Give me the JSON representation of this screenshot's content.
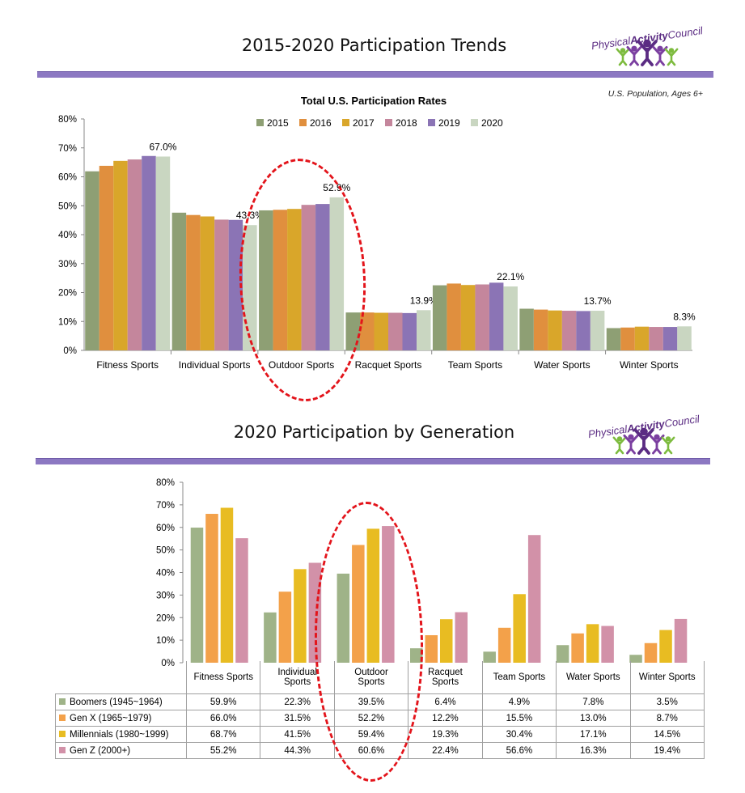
{
  "section1": {
    "title": "2015-2020 Participation Trends",
    "note": "U.S. Population, Ages 6+"
  },
  "section2": {
    "title": "2020 Participation by Generation"
  },
  "logo": {
    "text_a": "Physical",
    "text_b": "Activity",
    "text_c": "Council",
    "colors": [
      "#7dbb3e",
      "#7b3fa0",
      "#5b2c83",
      "#7b3fa0",
      "#7dbb3e"
    ]
  },
  "chart_data": [
    {
      "type": "bar",
      "title": "Total U.S. Participation Rates",
      "categories": [
        "Fitness Sports",
        "Individual Sports",
        "Outdoor Sports",
        "Racquet Sports",
        "Team Sports",
        "Water Sports",
        "Winter Sports"
      ],
      "series": [
        {
          "name": "2015",
          "color": "#8e9f74",
          "values": [
            61.9,
            47.6,
            48.4,
            13.1,
            22.5,
            14.4,
            7.7
          ]
        },
        {
          "name": "2016",
          "color": "#e08f3e",
          "values": [
            63.8,
            46.8,
            48.6,
            13.1,
            23.1,
            14.1,
            7.9
          ]
        },
        {
          "name": "2017",
          "color": "#d9a62a",
          "values": [
            65.5,
            46.3,
            48.9,
            13.0,
            22.6,
            13.8,
            8.2
          ]
        },
        {
          "name": "2018",
          "color": "#c4869c",
          "values": [
            66.0,
            45.2,
            50.3,
            13.0,
            22.8,
            13.7,
            8.1
          ]
        },
        {
          "name": "2019",
          "color": "#8b74b5",
          "values": [
            67.2,
            45.1,
            50.6,
            12.9,
            23.4,
            13.6,
            8.1
          ]
        },
        {
          "name": "2020",
          "color": "#c9d6c1",
          "values": [
            67.0,
            43.3,
            52.9,
            13.9,
            22.1,
            13.7,
            8.3
          ]
        }
      ],
      "data_labels": [
        "67.0%",
        "43.3%",
        "52.9%",
        "13.9%",
        "22.1%",
        "13.7%",
        "8.3%"
      ],
      "yticks": [
        "0%",
        "10%",
        "20%",
        "30%",
        "40%",
        "50%",
        "60%",
        "70%",
        "80%"
      ],
      "ylim": [
        0,
        80
      ],
      "legend": "top-center",
      "grid": false
    },
    {
      "type": "bar",
      "categories": [
        "Fitness Sports",
        "Individual Sports",
        "Outdoor Sports",
        "Racquet Sports",
        "Team Sports",
        "Water Sports",
        "Winter Sports"
      ],
      "category_display": [
        [
          "Fitness Sports"
        ],
        [
          "Individual",
          "Sports"
        ],
        [
          "Outdoor",
          "Sports"
        ],
        [
          "Racquet",
          "Sports"
        ],
        [
          "Team Sports"
        ],
        [
          "Water Sports"
        ],
        [
          "Winter Sports"
        ]
      ],
      "series": [
        {
          "name": "Boomers (1945~1964)",
          "color": "#9fb388",
          "values": [
            59.9,
            22.3,
            39.5,
            6.4,
            4.9,
            7.8,
            3.5
          ],
          "labels": [
            "59.9%",
            "22.3%",
            "39.5%",
            "6.4%",
            "4.9%",
            "7.8%",
            "3.5%"
          ]
        },
        {
          "name": "Gen X (1965~1979)",
          "color": "#f3a14a",
          "values": [
            66.0,
            31.5,
            52.2,
            12.2,
            15.5,
            13.0,
            8.7
          ],
          "labels": [
            "66.0%",
            "31.5%",
            "52.2%",
            "12.2%",
            "15.5%",
            "13.0%",
            "8.7%"
          ]
        },
        {
          "name": "Millennials (1980~1999)",
          "color": "#e8bc22",
          "values": [
            68.7,
            41.5,
            59.4,
            19.3,
            30.4,
            17.1,
            14.5
          ],
          "labels": [
            "68.7%",
            "41.5%",
            "59.4%",
            "19.3%",
            "30.4%",
            "17.1%",
            "14.5%"
          ]
        },
        {
          "name": "Gen Z (2000+)",
          "color": "#d291a8",
          "values": [
            55.2,
            44.3,
            60.6,
            22.4,
            56.6,
            16.3,
            19.4
          ],
          "labels": [
            "55.2%",
            "44.3%",
            "60.6%",
            "22.4%",
            "56.6%",
            "16.3%",
            "19.4%"
          ]
        }
      ],
      "yticks": [
        "0%",
        "10%",
        "20%",
        "30%",
        "40%",
        "50%",
        "60%",
        "70%",
        "80%"
      ],
      "ylim": [
        0,
        80
      ],
      "legend": "data-table",
      "grid": false
    }
  ]
}
